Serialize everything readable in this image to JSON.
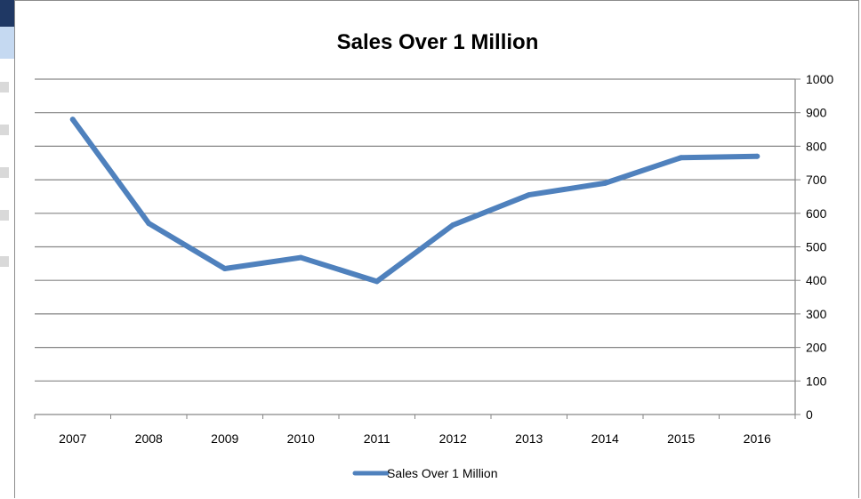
{
  "chart_data": {
    "type": "line",
    "title": "Sales Over 1 Million",
    "xlabel": "",
    "ylabel": "",
    "categories": [
      "2007",
      "2008",
      "2009",
      "2010",
      "2011",
      "2012",
      "2013",
      "2014",
      "2015",
      "2016"
    ],
    "series": [
      {
        "name": "Sales Over 1 Million",
        "color": "#4f81bd",
        "values": [
          880,
          570,
          435,
          468,
          397,
          565,
          655,
          690,
          766,
          770
        ]
      }
    ],
    "ylim": [
      0,
      1000
    ],
    "y_ticks": [
      "0",
      "100",
      "200",
      "300",
      "400",
      "500",
      "600",
      "700",
      "800",
      "900",
      "1000"
    ],
    "y_axis_side": "right",
    "grid": true,
    "legend_position": "bottom"
  }
}
